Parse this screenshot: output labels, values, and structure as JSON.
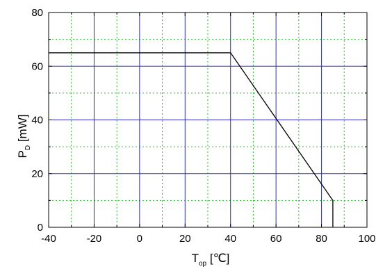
{
  "chart_data": {
    "type": "line",
    "xlabel": {
      "main": "T",
      "sub": "op",
      "unit": " [℃]"
    },
    "ylabel": {
      "main": "P",
      "sub": "D",
      "unit": " [mW]"
    },
    "xlim": [
      -40,
      100
    ],
    "ylim": [
      0,
      80
    ],
    "x_major_ticks": [
      -40,
      -20,
      0,
      20,
      40,
      60,
      80,
      100
    ],
    "y_major_ticks": [
      0,
      20,
      40,
      60,
      80
    ],
    "x_minor_grid": [
      -30,
      -10,
      10,
      30,
      50,
      70,
      90
    ],
    "y_minor_grid": [
      10,
      30,
      50,
      70
    ],
    "grid": true,
    "colors": {
      "major_grid": "#2a2ad0",
      "minor_grid": "#22c022",
      "series_line": "#000000"
    },
    "series": [
      {
        "x": [
          -40,
          40,
          85,
          85
        ],
        "y": [
          65,
          65,
          10,
          0
        ]
      }
    ]
  }
}
